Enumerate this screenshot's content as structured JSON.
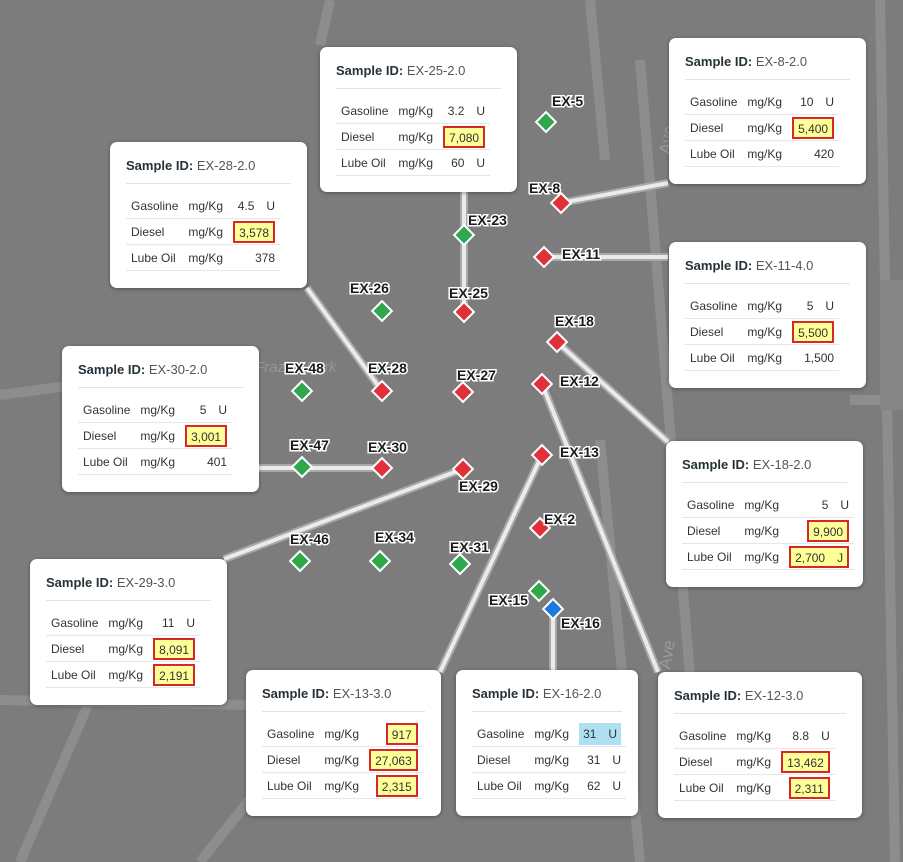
{
  "map": {
    "street_labels": [
      "Ave",
      "Ave",
      "Frazier Park"
    ],
    "colors": {
      "red": "#e0303a",
      "green": "#2ea84a",
      "blue": "#1e78e0",
      "leader": "#ebebeb",
      "highlight": "#ffff99",
      "highlight_border": "#d62828",
      "qualifier_fill": "#aee0f2"
    },
    "markers": [
      {
        "id": "EX-5",
        "color": "green"
      },
      {
        "id": "EX-8",
        "color": "red"
      },
      {
        "id": "EX-23",
        "color": "green"
      },
      {
        "id": "EX-11",
        "color": "red"
      },
      {
        "id": "EX-26",
        "color": "green"
      },
      {
        "id": "EX-25",
        "color": "red"
      },
      {
        "id": "EX-18",
        "color": "red"
      },
      {
        "id": "EX-48",
        "color": "green"
      },
      {
        "id": "EX-28",
        "color": "red"
      },
      {
        "id": "EX-27",
        "color": "red"
      },
      {
        "id": "EX-12",
        "color": "red"
      },
      {
        "id": "EX-47",
        "color": "green"
      },
      {
        "id": "EX-30",
        "color": "red"
      },
      {
        "id": "EX-13",
        "color": "red"
      },
      {
        "id": "EX-29",
        "color": "red"
      },
      {
        "id": "EX-2",
        "color": "red"
      },
      {
        "id": "EX-46",
        "color": "green"
      },
      {
        "id": "EX-34",
        "color": "green"
      },
      {
        "id": "EX-31",
        "color": "green"
      },
      {
        "id": "EX-15",
        "color": "green"
      },
      {
        "id": "EX-16",
        "color": "blue"
      }
    ]
  },
  "cards": [
    {
      "key": "ex25",
      "label": "Sample ID:",
      "sample_id": "EX-25-2.0",
      "rows": [
        {
          "analyte": "Gasoline",
          "unit": "mg/Kg",
          "value": "3.2",
          "qualifier": "U",
          "style": "plain"
        },
        {
          "analyte": "Diesel",
          "unit": "mg/Kg",
          "value": "7,080",
          "qualifier": "",
          "style": "box"
        },
        {
          "analyte": "Lube Oil",
          "unit": "mg/Kg",
          "value": "60",
          "qualifier": "U",
          "style": "plain"
        }
      ]
    },
    {
      "key": "ex8",
      "label": "Sample ID:",
      "sample_id": "EX-8-2.0",
      "rows": [
        {
          "analyte": "Gasoline",
          "unit": "mg/Kg",
          "value": "10",
          "qualifier": "U",
          "style": "plain"
        },
        {
          "analyte": "Diesel",
          "unit": "mg/Kg",
          "value": "5,400",
          "qualifier": "",
          "style": "box"
        },
        {
          "analyte": "Lube Oil",
          "unit": "mg/Kg",
          "value": "420",
          "qualifier": "",
          "style": "plain"
        }
      ]
    },
    {
      "key": "ex28",
      "label": "Sample ID:",
      "sample_id": "EX-28-2.0",
      "rows": [
        {
          "analyte": "Gasoline",
          "unit": "mg/Kg",
          "value": "4.5",
          "qualifier": "U",
          "style": "plain"
        },
        {
          "analyte": "Diesel",
          "unit": "mg/Kg",
          "value": "3,578",
          "qualifier": "",
          "style": "box"
        },
        {
          "analyte": "Lube Oil",
          "unit": "mg/Kg",
          "value": "378",
          "qualifier": "",
          "style": "plain"
        }
      ]
    },
    {
      "key": "ex11",
      "label": "Sample ID:",
      "sample_id": "EX-11-4.0",
      "rows": [
        {
          "analyte": "Gasoline",
          "unit": "mg/Kg",
          "value": "5",
          "qualifier": "U",
          "style": "plain"
        },
        {
          "analyte": "Diesel",
          "unit": "mg/Kg",
          "value": "5,500",
          "qualifier": "",
          "style": "box"
        },
        {
          "analyte": "Lube Oil",
          "unit": "mg/Kg",
          "value": "1,500",
          "qualifier": "",
          "style": "plain"
        }
      ]
    },
    {
      "key": "ex30",
      "label": "Sample ID:",
      "sample_id": "EX-30-2.0",
      "rows": [
        {
          "analyte": "Gasoline",
          "unit": "mg/Kg",
          "value": "5",
          "qualifier": "U",
          "style": "plain"
        },
        {
          "analyte": "Diesel",
          "unit": "mg/Kg",
          "value": "3,001",
          "qualifier": "",
          "style": "box"
        },
        {
          "analyte": "Lube Oil",
          "unit": "mg/Kg",
          "value": "401",
          "qualifier": "",
          "style": "plain"
        }
      ]
    },
    {
      "key": "ex18",
      "label": "Sample ID:",
      "sample_id": "EX-18-2.0",
      "rows": [
        {
          "analyte": "Gasoline",
          "unit": "mg/Kg",
          "value": "5",
          "qualifier": "U",
          "style": "plain"
        },
        {
          "analyte": "Diesel",
          "unit": "mg/Kg",
          "value": "9,900",
          "qualifier": "",
          "style": "box"
        },
        {
          "analyte": "Lube Oil",
          "unit": "mg/Kg",
          "value": "2,700",
          "qualifier": "J",
          "style": "box"
        }
      ]
    },
    {
      "key": "ex29",
      "label": "Sample ID:",
      "sample_id": "EX-29-3.0",
      "rows": [
        {
          "analyte": "Gasoline",
          "unit": "mg/Kg",
          "value": "11",
          "qualifier": "U",
          "style": "plain"
        },
        {
          "analyte": "Diesel",
          "unit": "mg/Kg",
          "value": "8,091",
          "qualifier": "",
          "style": "box"
        },
        {
          "analyte": "Lube Oil",
          "unit": "mg/Kg",
          "value": "2,191",
          "qualifier": "",
          "style": "box"
        }
      ]
    },
    {
      "key": "ex13",
      "label": "Sample ID:",
      "sample_id": "EX-13-3.0",
      "rows": [
        {
          "analyte": "Gasoline",
          "unit": "mg/Kg",
          "value": "917",
          "qualifier": "",
          "style": "box"
        },
        {
          "analyte": "Diesel",
          "unit": "mg/Kg",
          "value": "27,063",
          "qualifier": "",
          "style": "box"
        },
        {
          "analyte": "Lube Oil",
          "unit": "mg/Kg",
          "value": "2,315",
          "qualifier": "",
          "style": "box"
        }
      ]
    },
    {
      "key": "ex16",
      "label": "Sample ID:",
      "sample_id": "EX-16-2.0",
      "rows": [
        {
          "analyte": "Gasoline",
          "unit": "mg/Kg",
          "value": "31",
          "qualifier": "U",
          "style": "blue"
        },
        {
          "analyte": "Diesel",
          "unit": "mg/Kg",
          "value": "31",
          "qualifier": "U",
          "style": "plain"
        },
        {
          "analyte": "Lube Oil",
          "unit": "mg/Kg",
          "value": "62",
          "qualifier": "U",
          "style": "plain"
        }
      ]
    },
    {
      "key": "ex12",
      "label": "Sample ID:",
      "sample_id": "EX-12-3.0",
      "rows": [
        {
          "analyte": "Gasoline",
          "unit": "mg/Kg",
          "value": "8.8",
          "qualifier": "U",
          "style": "plain"
        },
        {
          "analyte": "Diesel",
          "unit": "mg/Kg",
          "value": "13,462",
          "qualifier": "",
          "style": "box"
        },
        {
          "analyte": "Lube Oil",
          "unit": "mg/Kg",
          "value": "2,311",
          "qualifier": "",
          "style": "box"
        }
      ]
    }
  ]
}
